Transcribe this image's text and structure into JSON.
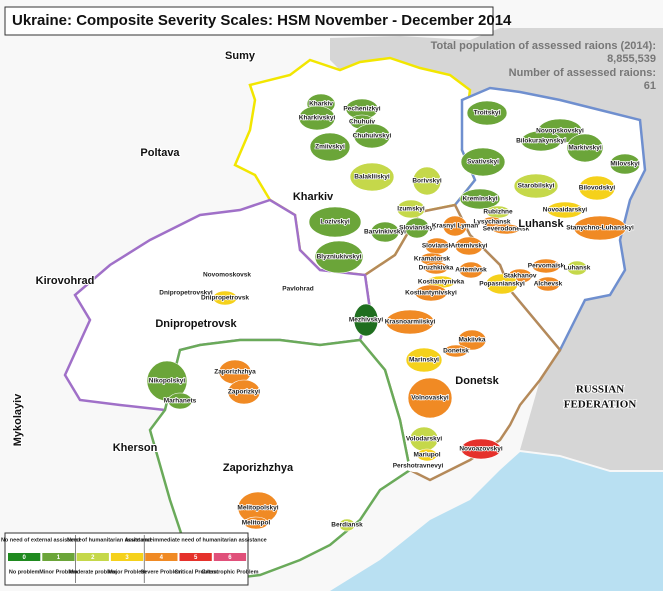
{
  "header": {
    "title": "Ukraine: Composite Severity Scales: HSM November - December 2014",
    "population_label": "Total population of assessed raions (2014):",
    "population_value": "8,855,539",
    "raions_label": "Number of assessed raions:",
    "raions_value": "61"
  },
  "regions": [
    {
      "label": "Sumy"
    },
    {
      "label": "Poltava"
    },
    {
      "label": "Kirovohrad"
    },
    {
      "label": "Mykolayiv"
    },
    {
      "label": "Kherson"
    },
    {
      "label": "Kharkiv"
    },
    {
      "label": "Luhansk"
    },
    {
      "label": "Dnipropetrovsk"
    },
    {
      "label": "Donetsk"
    },
    {
      "label": "Zaporizhzhya"
    },
    {
      "label": "RUSSIAN"
    },
    {
      "label": "FEDERATION"
    }
  ],
  "districts": [
    {
      "label": "Kharkiv",
      "color": "#6ba539"
    },
    {
      "label": "Kharkivskyi",
      "color": "#6ba539"
    },
    {
      "label": "Pechenizkyi",
      "color": "#6ba539"
    },
    {
      "label": "Chuhuiv",
      "color": "#6ba539"
    },
    {
      "label": "Chuhuivskyi",
      "color": "#6ba539"
    },
    {
      "label": "Zmiivskyi",
      "color": "#6ba539"
    },
    {
      "label": "Balakliiskyi",
      "color": "#c5d84a"
    },
    {
      "label": "Borivskyi",
      "color": "#c5d84a"
    },
    {
      "label": "Izumskyi",
      "color": "#c5d84a"
    },
    {
      "label": "Lozivskyi",
      "color": "#6ba539"
    },
    {
      "label": "Barvinkivskyi",
      "color": "#6ba539"
    },
    {
      "label": "Slovianskyi",
      "color": "#6ba539"
    },
    {
      "label": "Blyzniukivskyi",
      "color": "#6ba539"
    },
    {
      "label": "Troitskyi",
      "color": "#6ba539"
    },
    {
      "label": "Novopskovskyi",
      "color": "#6ba539"
    },
    {
      "label": "Bilokurakynskyi",
      "color": "#6ba539"
    },
    {
      "label": "Markivskyi",
      "color": "#6ba539"
    },
    {
      "label": "Svativskyi",
      "color": "#6ba539"
    },
    {
      "label": "Milovskyi",
      "color": "#6ba539"
    },
    {
      "label": "Starobilskyi",
      "color": "#c5d84a"
    },
    {
      "label": "Bilovodskyi",
      "color": "#f5d11b"
    },
    {
      "label": "Kreminskyi",
      "color": "#6ba539"
    },
    {
      "label": "Novoaidarskyi",
      "color": "#f5d11b"
    },
    {
      "label": "Rubizhne",
      "color": "#c5d84a"
    },
    {
      "label": "Lysychansk",
      "color": "#f08a24"
    },
    {
      "label": "Severodonetsk",
      "color": "#f08a24"
    },
    {
      "label": "Stanychno-Luhanskyi",
      "color": "#f08a24"
    },
    {
      "label": "Pervomaisk",
      "color": "#f08a24"
    },
    {
      "label": "Stakhanov",
      "color": "#f08a24"
    },
    {
      "label": "Alchevsk",
      "color": "#f08a24"
    },
    {
      "label": "Luhansk",
      "color": "#c5d84a"
    },
    {
      "label": "Krasnyi Lyman",
      "color": "#f08a24"
    },
    {
      "label": "Sloviansk",
      "color": "#f08a24"
    },
    {
      "label": "Artemivskyi",
      "color": "#f08a24"
    },
    {
      "label": "Kramatorsk",
      "color": "#f08a24"
    },
    {
      "label": "Druzhkivka",
      "color": "#f08a24"
    },
    {
      "label": "Artemivsk",
      "color": "#f08a24"
    },
    {
      "label": "Kostiantynivka",
      "color": "#f5d11b"
    },
    {
      "label": "Popasnianskyi",
      "color": "#f5d11b"
    },
    {
      "label": "Kostiantynivskyi",
      "color": "#f08a24"
    },
    {
      "label": "Krasnoarmiiskyi",
      "color": "#f08a24"
    },
    {
      "label": "Makiivka",
      "color": "#f08a24"
    },
    {
      "label": "Donetsk",
      "color": "#f08a24"
    },
    {
      "label": "Marinskyi",
      "color": "#f5d11b"
    },
    {
      "label": "Volnovaskyi",
      "color": "#f08a24"
    },
    {
      "label": "Volodarskyi",
      "color": "#c5d84a"
    },
    {
      "label": "Novoazovskyi",
      "color": "#e5312b"
    },
    {
      "label": "Mariupol",
      "color": "#f5d11b"
    },
    {
      "label": "Pershotravnevyi",
      "color": "#ffffff"
    },
    {
      "label": "Novomoskovsk",
      "color": "#ffffff"
    },
    {
      "label": "Dnipropetrovskyi",
      "color": "#ffffff"
    },
    {
      "label": "Dnipropetrovsk",
      "color": "#f5d11b"
    },
    {
      "label": "Pavlohrad",
      "color": "#ffffff"
    },
    {
      "label": "Mezhivskyi",
      "color": "#1f6e1f"
    },
    {
      "label": "Nikopolskyi",
      "color": "#6ba539"
    },
    {
      "label": "Marhanets",
      "color": "#6ba539"
    },
    {
      "label": "Zaporizhzhya",
      "color": "#f08a24"
    },
    {
      "label": "Zaporizkyi",
      "color": "#f08a24"
    },
    {
      "label": "Melitopolskyi",
      "color": "#f08a24"
    },
    {
      "label": "Melitopol",
      "color": "#f08a24"
    },
    {
      "label": "Berdiansk",
      "color": "#c5d84a"
    }
  ],
  "legend": {
    "groups": [
      {
        "label": "No need of external assistance"
      },
      {
        "label": "Need of humanitarian assistance"
      },
      {
        "label": "Acute and immediate need of humanitarian assistance"
      }
    ],
    "levels": [
      {
        "value": 0,
        "label": "No problem",
        "color": "#1f8a1f"
      },
      {
        "value": 1,
        "label": "Minor Problem",
        "color": "#6ba539"
      },
      {
        "value": 2,
        "label": "Moderate problem",
        "color": "#c5d84a"
      },
      {
        "value": 3,
        "label": "Major Problem",
        "color": "#f5d11b"
      },
      {
        "value": 4,
        "label": "Severe Problem",
        "color": "#f08a24"
      },
      {
        "value": 5,
        "label": "Critical Problem",
        "color": "#e5312b"
      },
      {
        "value": 6,
        "label": "Catastrophic Problem",
        "color": "#e0507a"
      }
    ]
  }
}
